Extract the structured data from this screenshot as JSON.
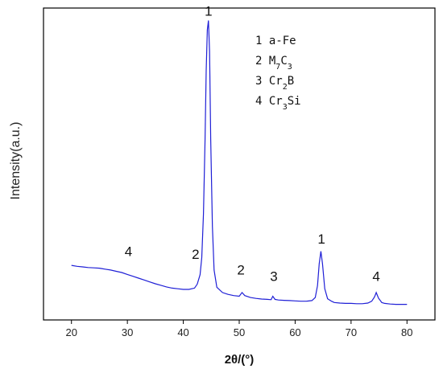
{
  "chart_data": {
    "type": "line",
    "xlabel": "2θ/(°)",
    "ylabel": "Intensity(a.u.)",
    "xlim": [
      15,
      85
    ],
    "ylim": [
      0,
      100
    ],
    "xticks": [
      "20",
      "30",
      "40",
      "50",
      "60",
      "70",
      "80"
    ],
    "yticks_shown": false,
    "grid": false,
    "legend": {
      "placement": "top-center",
      "entries": [
        {
          "num": "1",
          "text": "a-Fe"
        },
        {
          "num": "2",
          "text": "M7C3",
          "base1": "M",
          "sub1": "7",
          "base2": "C",
          "sub2": "3"
        },
        {
          "num": "3",
          "text": "Cr2B",
          "base1": "Cr",
          "sub1": "2",
          "base2": "B",
          "sub2": ""
        },
        {
          "num": "4",
          "text": "Cr3Si",
          "base1": "Cr",
          "sub1": "3",
          "base2": "Si",
          "sub2": ""
        }
      ]
    },
    "annotations": [
      {
        "text": "1",
        "x": 44.5,
        "y": 96
      },
      {
        "text": "2",
        "x": 42.2,
        "y": 18
      },
      {
        "text": "2",
        "x": 50.3,
        "y": 13
      },
      {
        "text": "3",
        "x": 56.2,
        "y": 11
      },
      {
        "text": "1",
        "x": 64.7,
        "y": 23
      },
      {
        "text": "4",
        "x": 74.5,
        "y": 11
      },
      {
        "text": "4",
        "x": 30.2,
        "y": 19
      }
    ],
    "series": [
      {
        "color": "#1f1fd6",
        "x": [
          20,
          21,
          22,
          23,
          24,
          25,
          26,
          27,
          28,
          29,
          30,
          31,
          32,
          33,
          34,
          35,
          36,
          37,
          38,
          39,
          40,
          41,
          42,
          42.5,
          43,
          43.3,
          43.6,
          43.9,
          44.1,
          44.3,
          44.5,
          44.7,
          44.9,
          45.2,
          45.5,
          46,
          47,
          48,
          49,
          50,
          50.5,
          51,
          52,
          53,
          54,
          55,
          55.7,
          56,
          56.4,
          57,
          58,
          59,
          60,
          61,
          62,
          63,
          63.6,
          64,
          64.3,
          64.6,
          64.9,
          65.3,
          65.8,
          66.5,
          67,
          68,
          69,
          70,
          71,
          72,
          73,
          73.7,
          74.2,
          74.5,
          74.9,
          75.5,
          76,
          77,
          78,
          79,
          80
        ],
        "y": [
          17.5,
          17.2,
          17.0,
          16.8,
          16.7,
          16.6,
          16.3,
          16.0,
          15.6,
          15.2,
          14.6,
          14.0,
          13.4,
          12.8,
          12.2,
          11.6,
          11.1,
          10.6,
          10.2,
          10.0,
          9.8,
          9.8,
          10.2,
          11.5,
          14.5,
          20,
          34,
          58,
          80,
          93,
          96,
          86,
          58,
          30,
          16,
          10.5,
          8.8,
          8.2,
          7.8,
          7.6,
          8.8,
          7.8,
          7.2,
          6.9,
          6.7,
          6.6,
          6.5,
          7.6,
          6.6,
          6.4,
          6.3,
          6.2,
          6.1,
          6.0,
          6.0,
          6.2,
          7.2,
          11,
          18,
          22,
          18,
          10,
          6.8,
          6.0,
          5.6,
          5.4,
          5.3,
          5.3,
          5.2,
          5.2,
          5.4,
          6.0,
          7.4,
          8.8,
          7.0,
          5.6,
          5.3,
          5.1,
          5.0,
          5.0,
          5.0
        ]
      }
    ]
  }
}
